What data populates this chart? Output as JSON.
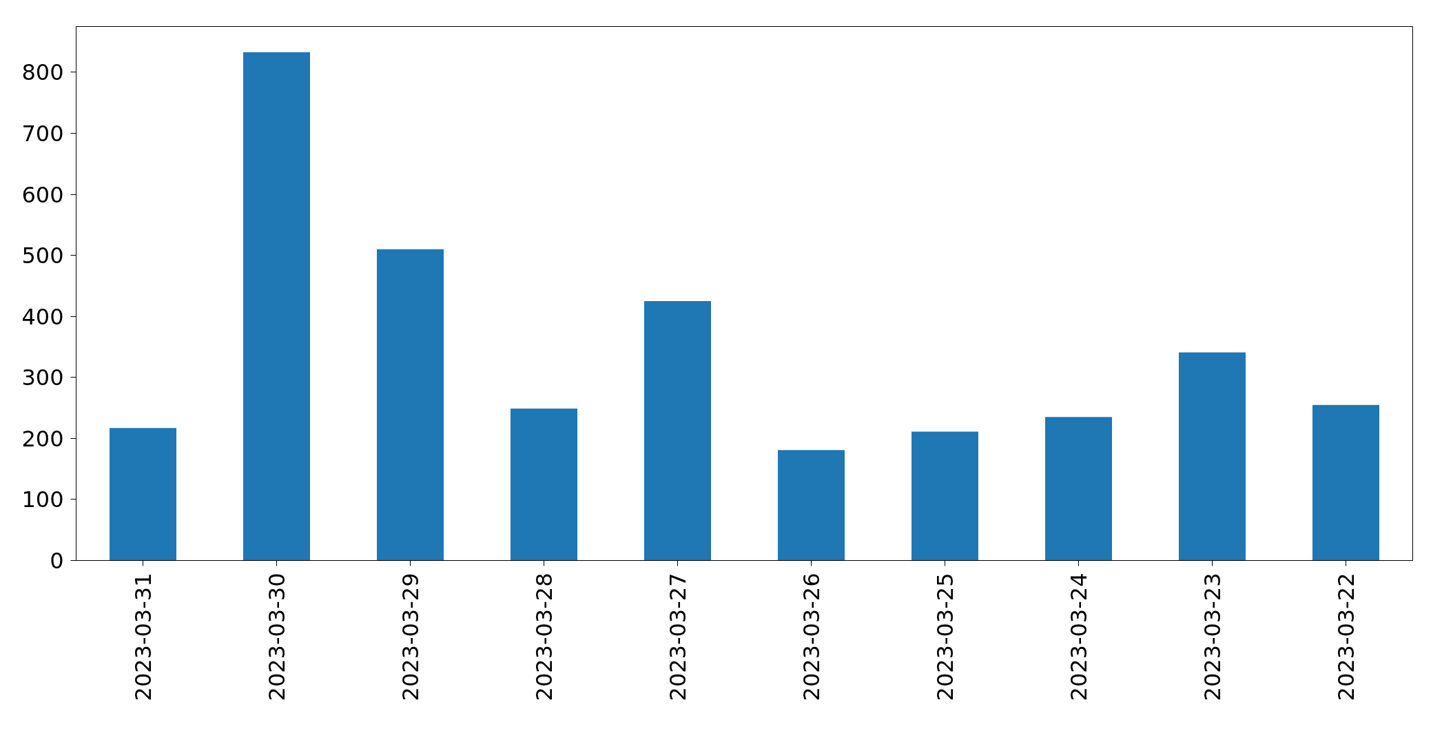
{
  "chart_data": {
    "type": "bar",
    "categories": [
      "2023-03-31",
      "2023-03-30",
      "2023-03-29",
      "2023-03-28",
      "2023-03-27",
      "2023-03-26",
      "2023-03-25",
      "2023-03-24",
      "2023-03-23",
      "2023-03-22"
    ],
    "values": [
      217,
      833,
      510,
      249,
      425,
      181,
      211,
      235,
      341,
      255
    ],
    "color": "#1f77b4",
    "ylim": [
      0,
      875
    ],
    "yticks": [
      0,
      100,
      200,
      300,
      400,
      500,
      600,
      700,
      800
    ],
    "grid": false
  }
}
